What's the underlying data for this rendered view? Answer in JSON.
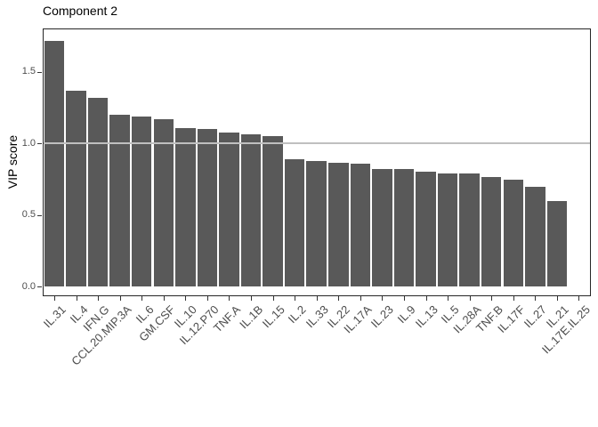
{
  "title": "Component 2",
  "chart_data": {
    "type": "bar",
    "title": "Component 2",
    "xlabel": "",
    "ylabel": "VIP score",
    "categories": [
      "IL.31",
      "IL.4",
      "IFN.G",
      "CCL.20.MIP.3A",
      "IL.6",
      "GM.CSF",
      "IL.10",
      "IL.12.P70",
      "TNF.A",
      "IL.1B",
      "IL.15",
      "IL.2",
      "IL.33",
      "IL.22",
      "IL.17A",
      "IL.23",
      "IL.9",
      "IL.13",
      "IL.5",
      "IL.28A",
      "TNF.B",
      "IL.17F",
      "IL.27",
      "IL.21",
      "IL.17E.IL.25"
    ],
    "values": [
      1.72,
      1.37,
      1.32,
      1.2,
      1.19,
      1.17,
      1.11,
      1.1,
      1.075,
      1.065,
      1.053,
      0.89,
      0.877,
      0.867,
      0.859,
      0.823,
      0.82,
      0.8,
      0.79,
      0.789,
      0.763,
      0.749,
      0.697,
      0.597,
      0
    ],
    "ylim": [
      0,
      1.81
    ],
    "yticks": [
      0,
      0.5,
      1.0,
      1.5
    ],
    "ytick_labels": [
      "0.0",
      "0.5",
      "1.0",
      "1.5"
    ],
    "reference_line": {
      "y": 1.0,
      "color": "#bfbfbf"
    },
    "bar_color": "#595959",
    "grid": false,
    "legend": false,
    "x_label_angle": 45
  }
}
